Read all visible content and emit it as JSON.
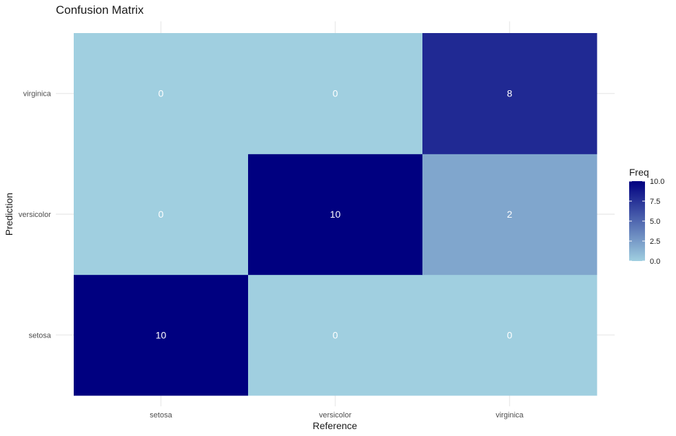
{
  "chart_data": {
    "type": "heatmap",
    "title": "Confusion Matrix",
    "xlabel": "Reference",
    "ylabel": "Prediction",
    "x_categories": [
      "setosa",
      "versicolor",
      "virginica"
    ],
    "y_categories": [
      "setosa",
      "versicolor",
      "virginica"
    ],
    "cells": [
      {
        "reference": "setosa",
        "prediction": "setosa",
        "freq": 10
      },
      {
        "reference": "versicolor",
        "prediction": "setosa",
        "freq": 0
      },
      {
        "reference": "virginica",
        "prediction": "setosa",
        "freq": 0
      },
      {
        "reference": "setosa",
        "prediction": "versicolor",
        "freq": 0
      },
      {
        "reference": "versicolor",
        "prediction": "versicolor",
        "freq": 10
      },
      {
        "reference": "virginica",
        "prediction": "versicolor",
        "freq": 2
      },
      {
        "reference": "setosa",
        "prediction": "virginica",
        "freq": 0
      },
      {
        "reference": "versicolor",
        "prediction": "virginica",
        "freq": 0
      },
      {
        "reference": "virginica",
        "prediction": "virginica",
        "freq": 8
      }
    ],
    "legend": {
      "title": "Freq",
      "placement": "right",
      "ticks": [
        "0.0",
        "2.5",
        "5.0",
        "7.5",
        "10.0"
      ],
      "range": [
        0,
        10
      ],
      "low_color": "#a0cfe0",
      "high_color": "#000080"
    },
    "grid": true,
    "cell_label_color": "#ffffff"
  }
}
